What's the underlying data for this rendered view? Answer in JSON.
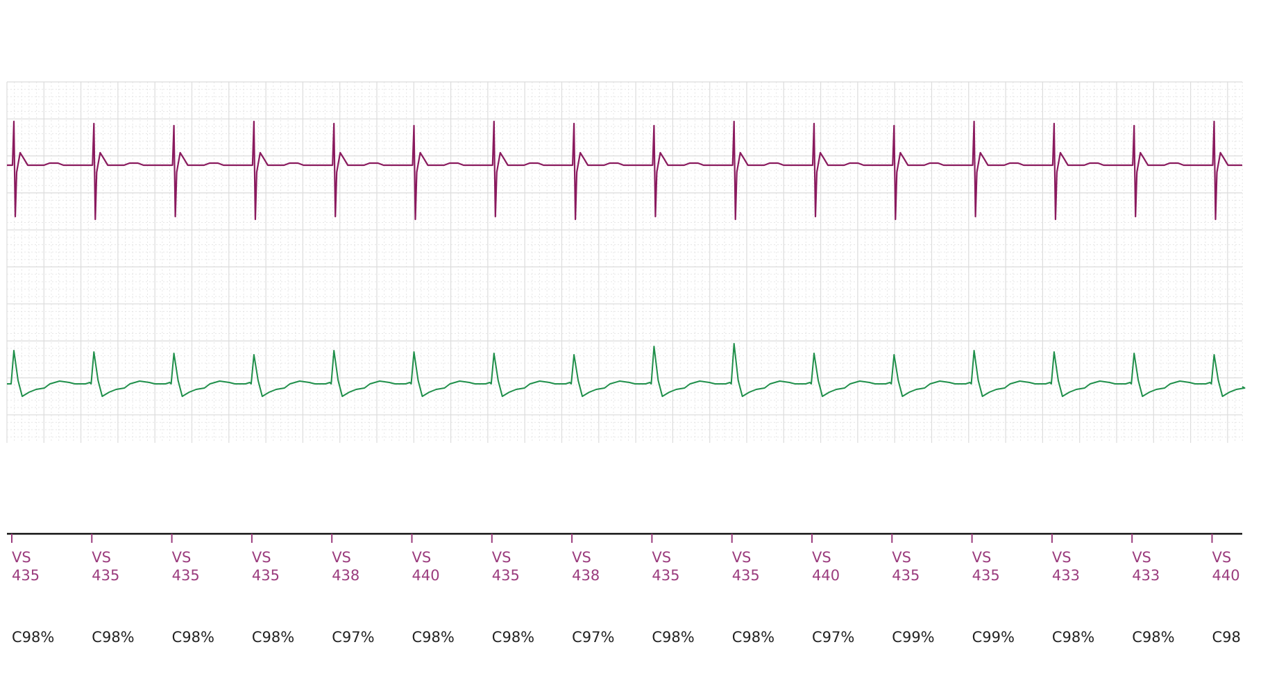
{
  "chart_data": {
    "type": "line",
    "grid": true,
    "colors": {
      "top_trace": "#8a1a5e",
      "bottom_trace": "#1f8f4a",
      "marker_text": "#9b3c7e",
      "percent_text": "#222222",
      "grid_major": "#dcdcdc",
      "grid_minor": "#e6e6e6",
      "baseline": "#111111"
    },
    "beats": [
      {
        "marker": "VS",
        "value": "435",
        "percent": "C98%"
      },
      {
        "marker": "VS",
        "value": "435",
        "percent": "C98%"
      },
      {
        "marker": "VS",
        "value": "435",
        "percent": "C98%"
      },
      {
        "marker": "VS",
        "value": "435",
        "percent": "C98%"
      },
      {
        "marker": "VS",
        "value": "438",
        "percent": "C97%"
      },
      {
        "marker": "VS",
        "value": "440",
        "percent": "C98%"
      },
      {
        "marker": "VS",
        "value": "435",
        "percent": "C98%"
      },
      {
        "marker": "VS",
        "value": "438",
        "percent": "C97%"
      },
      {
        "marker": "VS",
        "value": "435",
        "percent": "C98%"
      },
      {
        "marker": "VS",
        "value": "435",
        "percent": "C98%"
      },
      {
        "marker": "VS",
        "value": "440",
        "percent": "C97%"
      },
      {
        "marker": "VS",
        "value": "435",
        "percent": "C99%"
      },
      {
        "marker": "VS",
        "value": "435",
        "percent": "C99%"
      },
      {
        "marker": "VS",
        "value": "433",
        "percent": "C98%"
      },
      {
        "marker": "VS",
        "value": "433",
        "percent": "C98%"
      },
      {
        "marker": "VS",
        "value": "440",
        "percent": "C98"
      }
    ]
  }
}
